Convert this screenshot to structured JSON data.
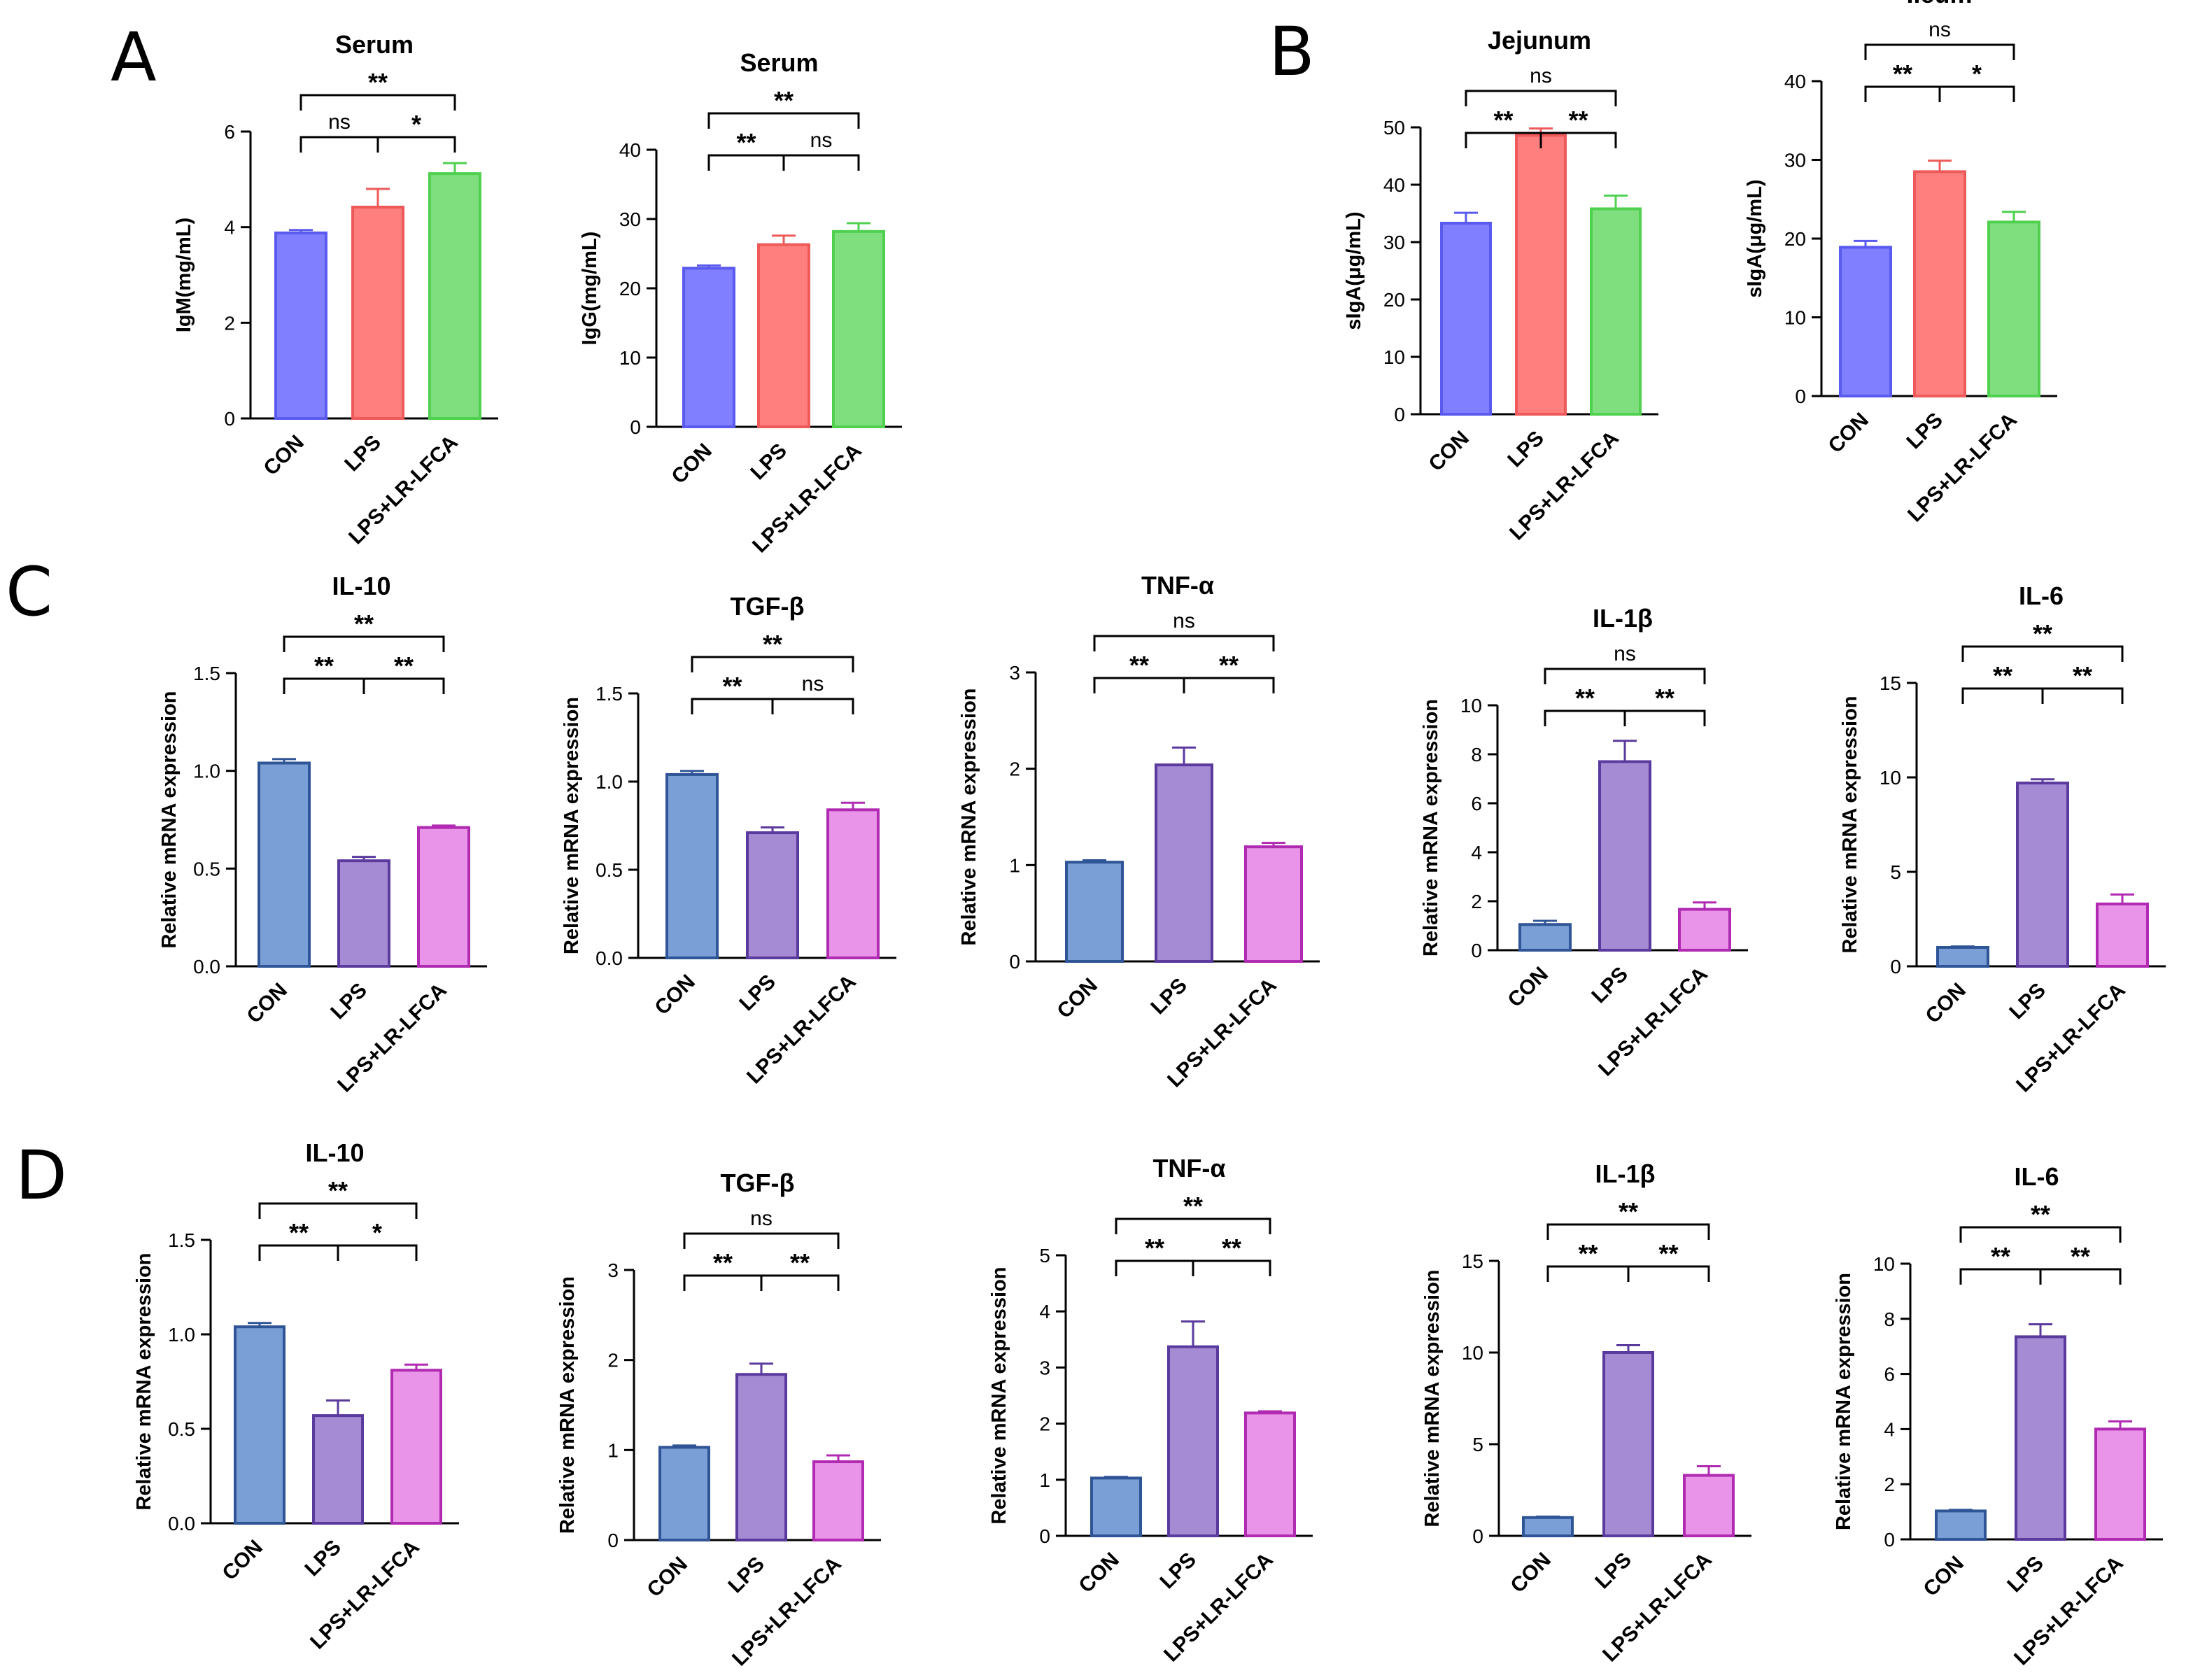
{
  "panel_labels": {
    "A": "A",
    "B": "B",
    "C": "C",
    "D": "D"
  },
  "categories": [
    "CON",
    "LPS",
    "LPS+LR-LFCA"
  ],
  "colors": {
    "rgb_scheme": {
      "fills": [
        "#7F7FFF",
        "#FF7F7F",
        "#7FDF7F"
      ],
      "strokes": [
        "#5A5AEE",
        "#EE5A5A",
        "#4FD04F"
      ]
    },
    "purple_scheme": {
      "fills": [
        "#7A9FD6",
        "#A58AD4",
        "#E994E8"
      ],
      "strokes": [
        "#2F5597",
        "#5B3A9E",
        "#B02AB2"
      ]
    }
  },
  "chart_data": [
    {
      "panel": "A",
      "type": "bar",
      "title": "Serum",
      "ylabel": "IgM(mg/mL)",
      "categories": [
        "CON",
        "LPS",
        "LPS+LR-LFCA"
      ],
      "values": [
        3.88,
        4.42,
        5.12
      ],
      "errors": [
        0.06,
        0.38,
        0.22
      ],
      "ylim": [
        0,
        6
      ],
      "ticks": [
        0,
        2,
        4,
        6
      ],
      "significance": [
        {
          "from": 0,
          "to": 1,
          "label": "ns"
        },
        {
          "from": 1,
          "to": 2,
          "label": "*"
        },
        {
          "from": 0,
          "to": 2,
          "label": "**"
        }
      ]
    },
    {
      "panel": "A",
      "type": "bar",
      "title": "Serum",
      "ylabel": "IgG(mg/mL)",
      "categories": [
        "CON",
        "LPS",
        "LPS+LR-LFCA"
      ],
      "values": [
        22.9,
        26.3,
        28.2
      ],
      "errors": [
        0.4,
        1.3,
        1.2
      ],
      "ylim": [
        0,
        40
      ],
      "ticks": [
        0,
        10,
        20,
        30,
        40
      ],
      "significance": [
        {
          "from": 0,
          "to": 1,
          "label": "**"
        },
        {
          "from": 1,
          "to": 2,
          "label": "ns"
        },
        {
          "from": 0,
          "to": 2,
          "label": "**"
        }
      ]
    },
    {
      "panel": "B",
      "type": "bar",
      "title": "Jejunum",
      "ylabel": "sIgA(μg/mL)",
      "categories": [
        "CON",
        "LPS",
        "LPS+LR-LFCA"
      ],
      "values": [
        33.3,
        48.6,
        35.8
      ],
      "errors": [
        1.8,
        1.2,
        2.3
      ],
      "ylim": [
        0,
        50
      ],
      "ticks": [
        0,
        10,
        20,
        30,
        40,
        50
      ],
      "significance": [
        {
          "from": 0,
          "to": 1,
          "label": "**"
        },
        {
          "from": 1,
          "to": 2,
          "label": "**"
        },
        {
          "from": 0,
          "to": 2,
          "label": "ns"
        }
      ]
    },
    {
      "panel": "B",
      "type": "bar",
      "title": "Ileum",
      "ylabel": "sIgA(μg/mL)",
      "categories": [
        "CON",
        "LPS",
        "LPS+LR-LFCA"
      ],
      "values": [
        18.9,
        28.5,
        22.1
      ],
      "errors": [
        0.8,
        1.4,
        1.3
      ],
      "ylim": [
        0,
        40
      ],
      "ticks": [
        0,
        10,
        20,
        30,
        40
      ],
      "significance": [
        {
          "from": 0,
          "to": 1,
          "label": "**"
        },
        {
          "from": 1,
          "to": 2,
          "label": "*"
        },
        {
          "from": 0,
          "to": 2,
          "label": "ns"
        }
      ]
    },
    {
      "panel": "C",
      "type": "bar",
      "title": "IL-10",
      "ylabel": "Relative mRNA expression",
      "categories": [
        "CON",
        "LPS",
        "LPS+LR-LFCA"
      ],
      "values": [
        1.04,
        0.54,
        0.71
      ],
      "errors": [
        0.02,
        0.02,
        0.01
      ],
      "ylim": [
        0,
        1.5
      ],
      "ticks": [
        "0.0",
        "0.5",
        "1.0",
        "1.5"
      ],
      "significance": [
        {
          "from": 0,
          "to": 1,
          "label": "**"
        },
        {
          "from": 1,
          "to": 2,
          "label": "**"
        },
        {
          "from": 0,
          "to": 2,
          "label": "**"
        }
      ]
    },
    {
      "panel": "C",
      "type": "bar",
      "title": "TGF-β",
      "ylabel": "Relative mRNA expression",
      "categories": [
        "CON",
        "LPS",
        "LPS+LR-LFCA"
      ],
      "values": [
        1.04,
        0.71,
        0.84
      ],
      "errors": [
        0.02,
        0.03,
        0.04
      ],
      "ylim": [
        0,
        1.5
      ],
      "ticks": [
        "0.0",
        "0.5",
        "1.0",
        "1.5"
      ],
      "significance": [
        {
          "from": 0,
          "to": 1,
          "label": "**"
        },
        {
          "from": 1,
          "to": 2,
          "label": "ns"
        },
        {
          "from": 0,
          "to": 2,
          "label": "**"
        }
      ]
    },
    {
      "panel": "C",
      "type": "bar",
      "title": "TNF-α",
      "ylabel": "Relative mRNA expression",
      "categories": [
        "CON",
        "LPS",
        "LPS+LR-LFCA"
      ],
      "values": [
        1.03,
        2.04,
        1.19
      ],
      "errors": [
        0.02,
        0.18,
        0.04
      ],
      "ylim": [
        0,
        3
      ],
      "ticks": [
        0,
        1,
        2,
        3
      ],
      "significance": [
        {
          "from": 0,
          "to": 1,
          "label": "**"
        },
        {
          "from": 1,
          "to": 2,
          "label": "**"
        },
        {
          "from": 0,
          "to": 2,
          "label": "ns"
        }
      ]
    },
    {
      "panel": "C",
      "type": "bar",
      "title": "IL-1β",
      "ylabel": "Relative mRNA expression",
      "categories": [
        "CON",
        "LPS",
        "LPS+LR-LFCA"
      ],
      "values": [
        1.05,
        7.7,
        1.67
      ],
      "errors": [
        0.15,
        0.85,
        0.28
      ],
      "ylim": [
        0,
        10
      ],
      "ticks": [
        0,
        2,
        4,
        6,
        8,
        10
      ],
      "significance": [
        {
          "from": 0,
          "to": 1,
          "label": "**"
        },
        {
          "from": 1,
          "to": 2,
          "label": "**"
        },
        {
          "from": 0,
          "to": 2,
          "label": "ns"
        }
      ]
    },
    {
      "panel": "C",
      "type": "bar",
      "title": "IL-6",
      "ylabel": "Relative mRNA expression",
      "categories": [
        "CON",
        "LPS",
        "LPS+LR-LFCA"
      ],
      "values": [
        1.0,
        9.7,
        3.3
      ],
      "errors": [
        0.05,
        0.2,
        0.5
      ],
      "ylim": [
        0,
        15
      ],
      "ticks": [
        0,
        5,
        10,
        15
      ],
      "significance": [
        {
          "from": 0,
          "to": 1,
          "label": "**"
        },
        {
          "from": 1,
          "to": 2,
          "label": "**"
        },
        {
          "from": 0,
          "to": 2,
          "label": "**"
        }
      ]
    },
    {
      "panel": "D",
      "type": "bar",
      "title": "IL-10",
      "ylabel": "Relative mRNA expression",
      "categories": [
        "CON",
        "LPS",
        "LPS+LR-LFCA"
      ],
      "values": [
        1.04,
        0.57,
        0.81
      ],
      "errors": [
        0.02,
        0.08,
        0.03
      ],
      "ylim": [
        0,
        1.5
      ],
      "ticks": [
        "0.0",
        "0.5",
        "1.0",
        "1.5"
      ],
      "significance": [
        {
          "from": 0,
          "to": 1,
          "label": "**"
        },
        {
          "from": 1,
          "to": 2,
          "label": "*"
        },
        {
          "from": 0,
          "to": 2,
          "label": "**"
        }
      ]
    },
    {
      "panel": "D",
      "type": "bar",
      "title": "TGF-β",
      "ylabel": "Relative mRNA expression",
      "categories": [
        "CON",
        "LPS",
        "LPS+LR-LFCA"
      ],
      "values": [
        1.03,
        1.84,
        0.87
      ],
      "errors": [
        0.02,
        0.12,
        0.07
      ],
      "ylim": [
        0,
        3
      ],
      "ticks": [
        0,
        1,
        2,
        3
      ],
      "significance": [
        {
          "from": 0,
          "to": 1,
          "label": "**"
        },
        {
          "from": 1,
          "to": 2,
          "label": "**"
        },
        {
          "from": 0,
          "to": 2,
          "label": "ns"
        }
      ]
    },
    {
      "panel": "D",
      "type": "bar",
      "title": "TNF-α",
      "ylabel": "Relative mRNA expression",
      "categories": [
        "CON",
        "LPS",
        "LPS+LR-LFCA"
      ],
      "values": [
        1.03,
        3.37,
        2.19
      ],
      "errors": [
        0.02,
        0.45,
        0.03
      ],
      "ylim": [
        0,
        5
      ],
      "ticks": [
        0,
        1,
        2,
        3,
        4,
        5
      ],
      "significance": [
        {
          "from": 0,
          "to": 1,
          "label": "**"
        },
        {
          "from": 1,
          "to": 2,
          "label": "**"
        },
        {
          "from": 0,
          "to": 2,
          "label": "**"
        }
      ]
    },
    {
      "panel": "D",
      "type": "bar",
      "title": "IL-1β",
      "ylabel": "Relative mRNA expression",
      "categories": [
        "CON",
        "LPS",
        "LPS+LR-LFCA"
      ],
      "values": [
        1.0,
        10.0,
        3.3
      ],
      "errors": [
        0.05,
        0.4,
        0.5
      ],
      "ylim": [
        0,
        15
      ],
      "ticks": [
        0,
        5,
        10,
        15
      ],
      "significance": [
        {
          "from": 0,
          "to": 1,
          "label": "**"
        },
        {
          "from": 1,
          "to": 2,
          "label": "**"
        },
        {
          "from": 0,
          "to": 2,
          "label": "**"
        }
      ]
    },
    {
      "panel": "D",
      "type": "bar",
      "title": "IL-6",
      "ylabel": "Relative mRNA expression",
      "categories": [
        "CON",
        "LPS",
        "LPS+LR-LFCA"
      ],
      "values": [
        1.03,
        7.35,
        4.0
      ],
      "errors": [
        0.04,
        0.45,
        0.28
      ],
      "ylim": [
        0,
        10
      ],
      "ticks": [
        0,
        2,
        4,
        6,
        8,
        10
      ],
      "significance": [
        {
          "from": 0,
          "to": 1,
          "label": "**"
        },
        {
          "from": 1,
          "to": 2,
          "label": "**"
        },
        {
          "from": 0,
          "to": 2,
          "label": "**"
        }
      ]
    }
  ]
}
